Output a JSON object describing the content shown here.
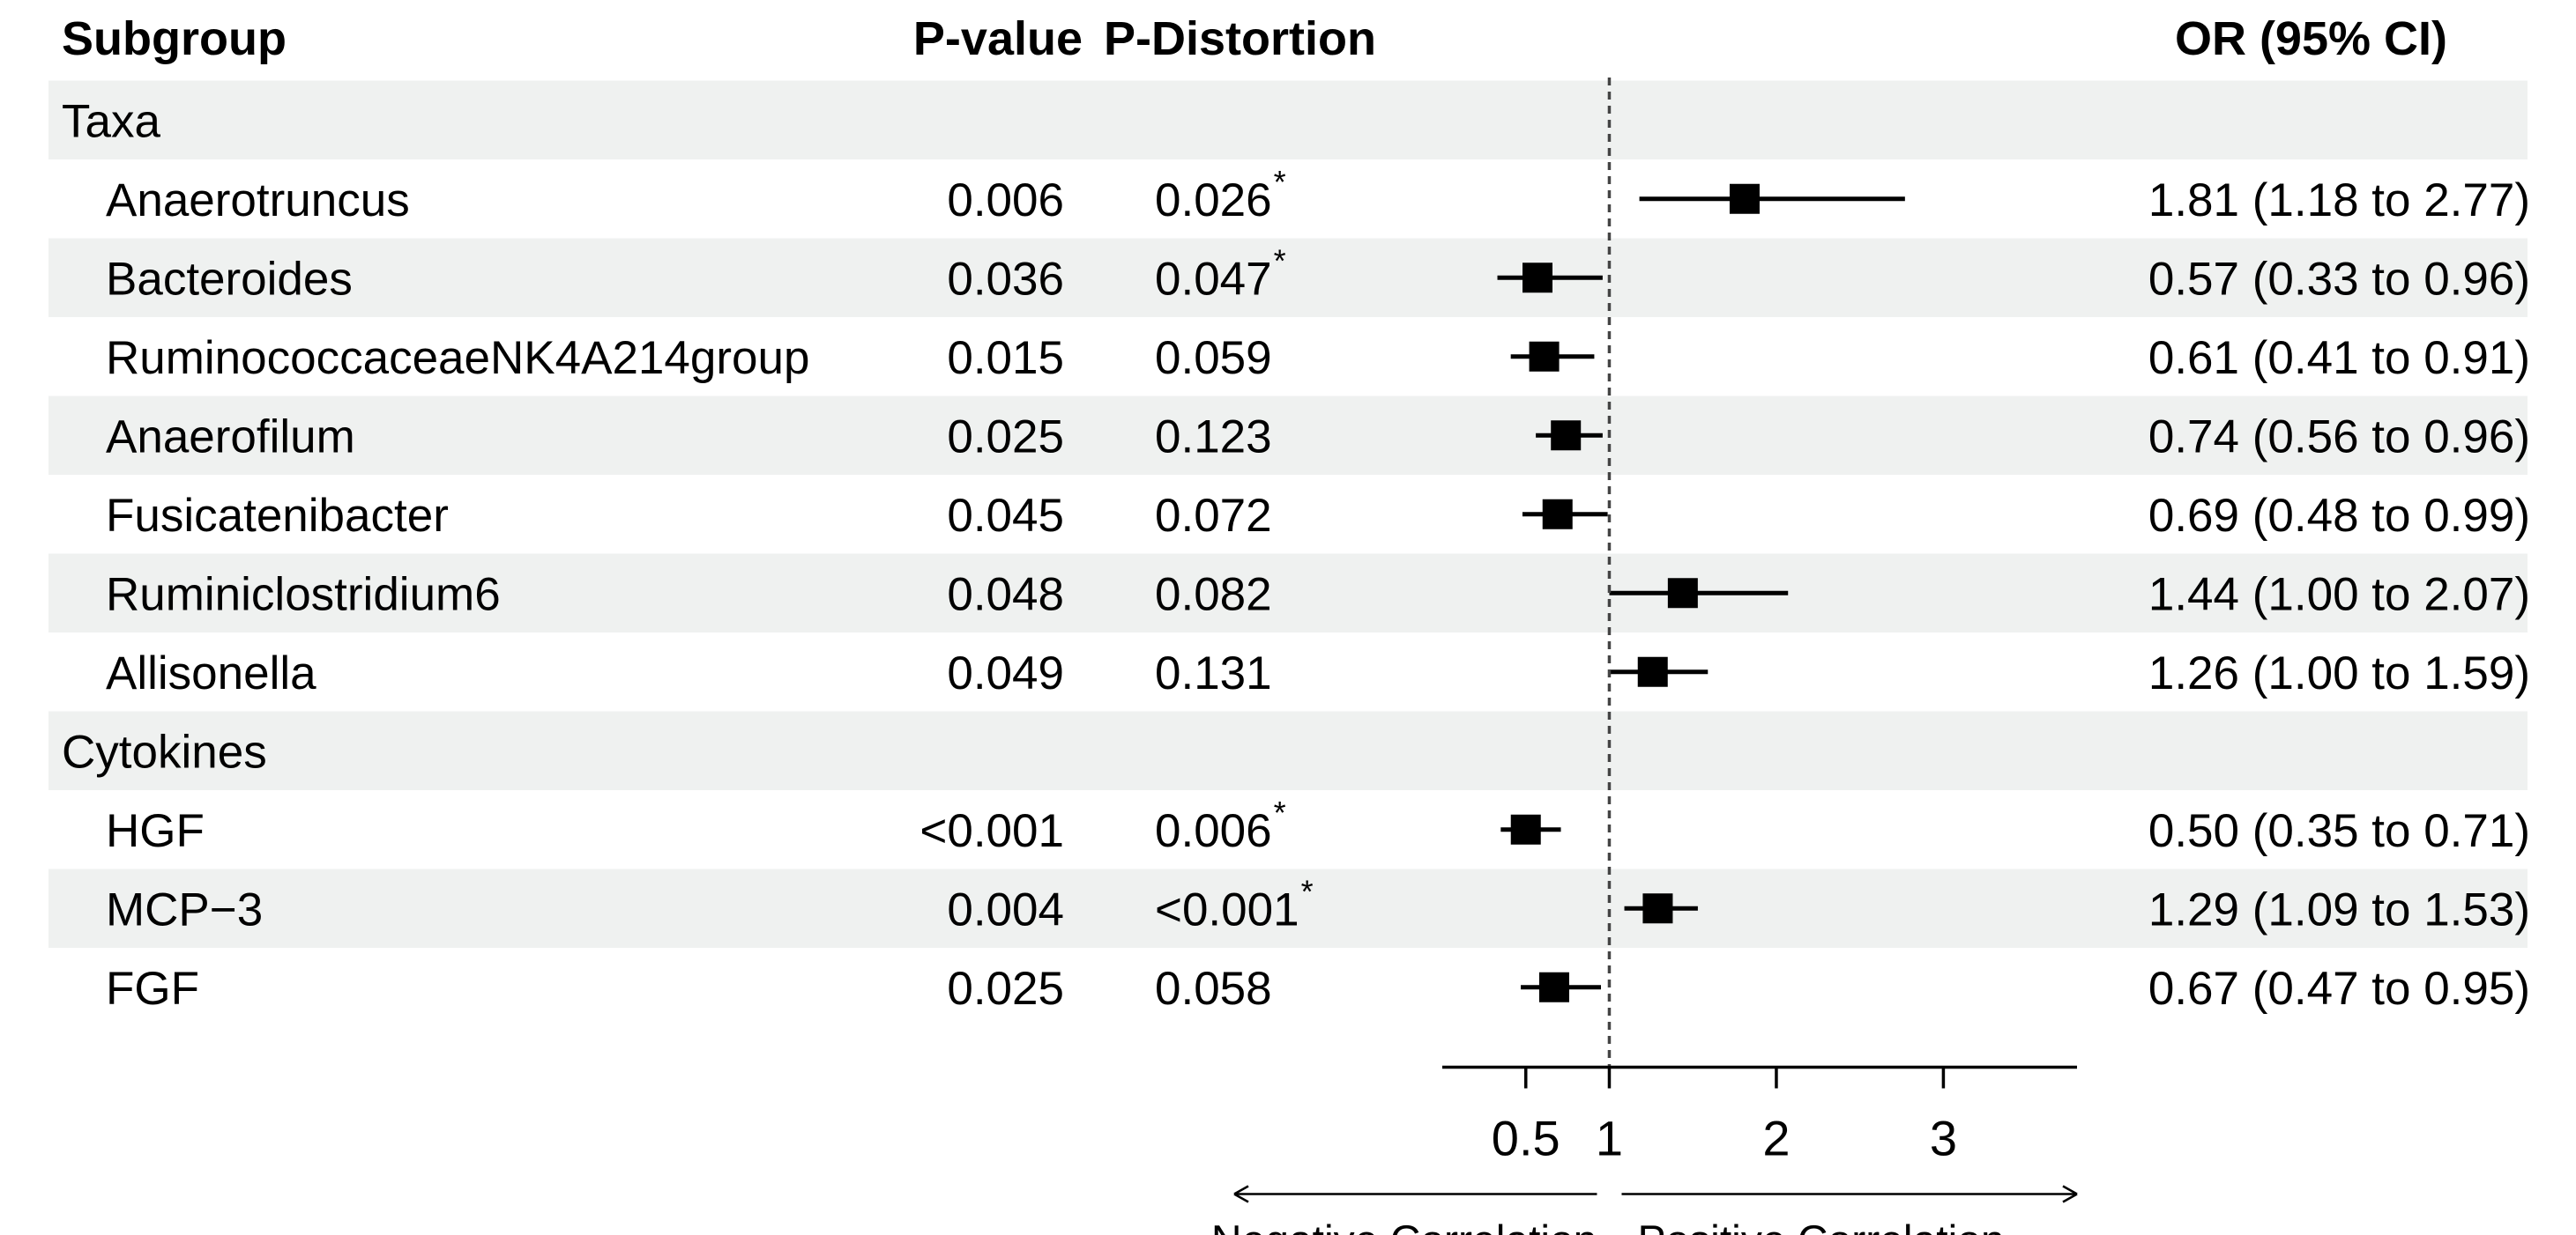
{
  "headers": {
    "subgroup": "Subgroup",
    "pvalue": "P-value",
    "pdistortion": "P-Distortion",
    "or": "OR (95% CI)"
  },
  "groups": [
    {
      "name": "Taxa",
      "items": [
        {
          "label": "Anaerotruncus",
          "p": "0.006",
          "pd": "0.026",
          "star": "*",
          "or_text": "1.81 (1.18 to 2.77)",
          "or": 1.81,
          "lo": 1.18,
          "hi": 2.77
        },
        {
          "label": "Bacteroides",
          "p": "0.036",
          "pd": "0.047",
          "star": "*",
          "or_text": "0.57 (0.33 to 0.96)",
          "or": 0.57,
          "lo": 0.33,
          "hi": 0.96
        },
        {
          "label": "RuminococcaceaeNK4A214group",
          "p": "0.015",
          "pd": "0.059",
          "star": "",
          "or_text": "0.61 (0.41 to 0.91)",
          "or": 0.61,
          "lo": 0.41,
          "hi": 0.91
        },
        {
          "label": "Anaerofilum",
          "p": "0.025",
          "pd": "0.123",
          "star": "",
          "or_text": "0.74 (0.56 to 0.96)",
          "or": 0.74,
          "lo": 0.56,
          "hi": 0.96
        },
        {
          "label": "Fusicatenibacter",
          "p": "0.045",
          "pd": "0.072",
          "star": "",
          "or_text": "0.69 (0.48 to 0.99)",
          "or": 0.69,
          "lo": 0.48,
          "hi": 0.99
        },
        {
          "label": "Ruminiclostridium6",
          "p": "0.048",
          "pd": "0.082",
          "star": "",
          "or_text": "1.44 (1.00 to 2.07)",
          "or": 1.44,
          "lo": 1.0,
          "hi": 2.07
        },
        {
          "label": "Allisonella",
          "p": "0.049",
          "pd": "0.131",
          "star": "",
          "or_text": "1.26 (1.00 to 1.59)",
          "or": 1.26,
          "lo": 1.0,
          "hi": 1.59
        }
      ]
    },
    {
      "name": "Cytokines",
      "items": [
        {
          "label": "HGF",
          "p": "<0.001",
          "pd": "0.006",
          "star": "*",
          "or_text": "0.50 (0.35 to 0.71)",
          "or": 0.5,
          "lo": 0.35,
          "hi": 0.71
        },
        {
          "label": "MCP−3",
          "p": "0.004",
          "pd": "<0.001",
          "star": "*",
          "or_text": "1.29 (1.09 to 1.53)",
          "or": 1.29,
          "lo": 1.09,
          "hi": 1.53
        },
        {
          "label": "FGF",
          "p": "0.025",
          "pd": "0.058",
          "star": "",
          "or_text": "0.67 (0.47 to 0.95)",
          "or": 0.67,
          "lo": 0.47,
          "hi": 0.95
        }
      ]
    }
  ],
  "chart_data": {
    "type": "forest",
    "title": "",
    "xlabel": "",
    "reference_line": 1,
    "xlim": [
      0,
      3.8
    ],
    "ticks": [
      0.5,
      1,
      2,
      3
    ],
    "tick_labels": [
      "0.5",
      "1",
      "2",
      "3"
    ],
    "direction_labels": {
      "negative": "Negative Correlation",
      "positive": "Positive Correlation"
    },
    "series": [
      {
        "name": "Anaerotruncus",
        "or": 1.81,
        "lo": 1.18,
        "hi": 2.77
      },
      {
        "name": "Bacteroides",
        "or": 0.57,
        "lo": 0.33,
        "hi": 0.96
      },
      {
        "name": "RuminococcaceaeNK4A214group",
        "or": 0.61,
        "lo": 0.41,
        "hi": 0.91
      },
      {
        "name": "Anaerofilum",
        "or": 0.74,
        "lo": 0.56,
        "hi": 0.96
      },
      {
        "name": "Fusicatenibacter",
        "or": 0.69,
        "lo": 0.48,
        "hi": 0.99
      },
      {
        "name": "Ruminiclostridium6",
        "or": 1.44,
        "lo": 1.0,
        "hi": 2.07
      },
      {
        "name": "Allisonella",
        "or": 1.26,
        "lo": 1.0,
        "hi": 1.59
      },
      {
        "name": "HGF",
        "or": 0.5,
        "lo": 0.35,
        "hi": 0.71
      },
      {
        "name": "MCP−3",
        "or": 1.29,
        "lo": 1.09,
        "hi": 1.53
      },
      {
        "name": "FGF",
        "or": 0.67,
        "lo": 0.47,
        "hi": 0.95
      }
    ],
    "colors": {
      "band": "#eff1f0",
      "ink": "#000000"
    }
  }
}
